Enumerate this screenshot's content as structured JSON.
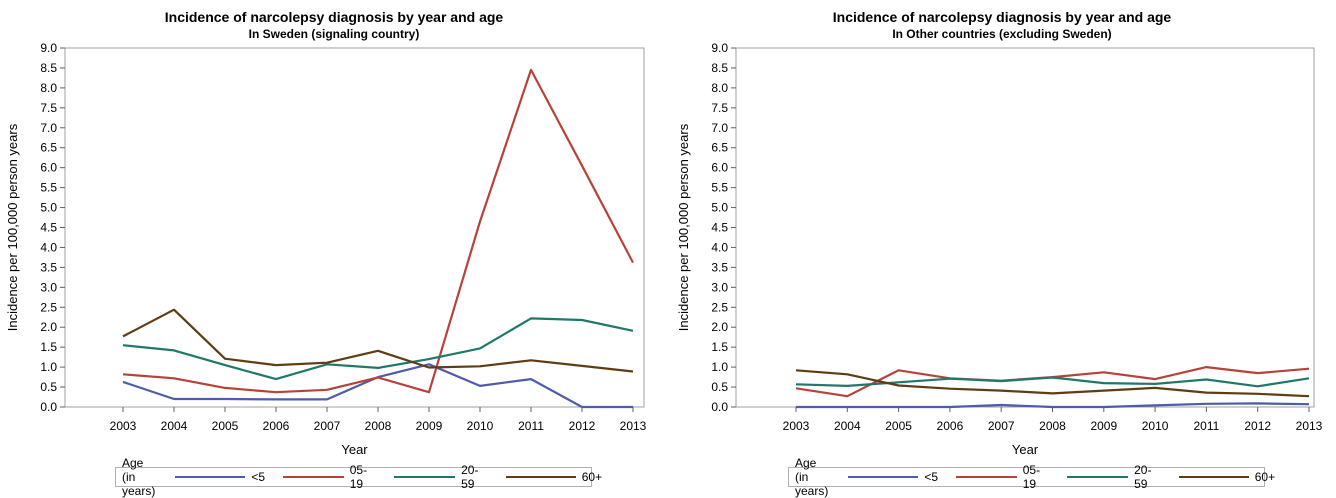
{
  "legend_title": "Age (in years)",
  "series_colors": [
    "#4f5bab",
    "#b8423a",
    "#1f786a",
    "#5e3d14"
  ],
  "chart_data": [
    {
      "type": "line",
      "title": "Incidence of narcolepsy diagnosis by year and age",
      "subtitle": "In Sweden (signaling country)",
      "xlabel": "Year",
      "ylabel": "Incidence per 100,000 person years",
      "ylim": [
        0,
        9
      ],
      "yticks": [
        "0.0",
        "0.5",
        "1.0",
        "1.5",
        "2.0",
        "2.5",
        "3.0",
        "3.5",
        "4.0",
        "4.5",
        "5.0",
        "5.5",
        "6.0",
        "6.5",
        "7.0",
        "7.5",
        "8.0",
        "8.5",
        "9.0"
      ],
      "x": [
        2003,
        2004,
        2005,
        2006,
        2007,
        2008,
        2009,
        2010,
        2011,
        2012,
        2013
      ],
      "legend_position": "bottom",
      "series": [
        {
          "name": "<5",
          "values": [
            0.63,
            0.2,
            0.2,
            0.19,
            0.19,
            0.75,
            1.07,
            0.53,
            0.7,
            0.0,
            0.0
          ]
        },
        {
          "name": "05-19",
          "values": [
            0.82,
            0.72,
            0.48,
            0.37,
            0.43,
            0.74,
            0.37,
            4.65,
            8.45,
            6.05,
            3.62
          ]
        },
        {
          "name": "20-59",
          "values": [
            1.55,
            1.42,
            1.05,
            0.7,
            1.07,
            0.98,
            1.2,
            1.47,
            2.22,
            2.18,
            1.91
          ]
        },
        {
          "name": "60+",
          "values": [
            1.77,
            2.44,
            1.21,
            1.05,
            1.11,
            1.41,
            0.99,
            1.02,
            1.17,
            1.03,
            0.89
          ]
        }
      ]
    },
    {
      "type": "line",
      "title": "Incidence of narcolepsy diagnosis by year and age",
      "subtitle": "In Other countries (excluding Sweden)",
      "xlabel": "Year",
      "ylabel": "Incidence per 100,000 person years",
      "ylim": [
        0,
        9
      ],
      "yticks": [
        "0.0",
        "0.5",
        "1.0",
        "1.5",
        "2.0",
        "2.5",
        "3.0",
        "3.5",
        "4.0",
        "4.5",
        "5.0",
        "5.5",
        "6.0",
        "6.5",
        "7.0",
        "7.5",
        "8.0",
        "8.5",
        "9.0"
      ],
      "x": [
        2003,
        2004,
        2005,
        2006,
        2007,
        2008,
        2009,
        2010,
        2011,
        2012,
        2013
      ],
      "legend_position": "bottom",
      "series": [
        {
          "name": "<5",
          "values": [
            0.0,
            0.0,
            0.0,
            0.0,
            0.05,
            0.0,
            0.0,
            0.04,
            0.08,
            0.09,
            0.07
          ]
        },
        {
          "name": "05-19",
          "values": [
            0.47,
            0.27,
            0.92,
            0.72,
            0.66,
            0.75,
            0.87,
            0.7,
            1.0,
            0.85,
            0.96
          ]
        },
        {
          "name": "20-59",
          "values": [
            0.57,
            0.53,
            0.62,
            0.71,
            0.65,
            0.74,
            0.6,
            0.58,
            0.69,
            0.52,
            0.72
          ]
        },
        {
          "name": "60+",
          "values": [
            0.92,
            0.82,
            0.54,
            0.46,
            0.41,
            0.34,
            0.41,
            0.48,
            0.36,
            0.33,
            0.27
          ]
        }
      ]
    }
  ]
}
